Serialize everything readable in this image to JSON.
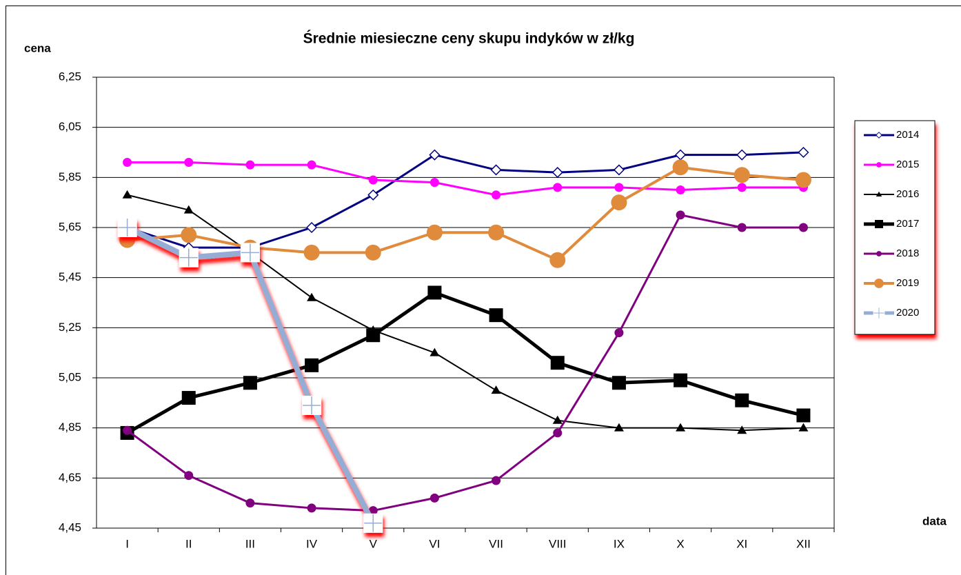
{
  "chart_data": {
    "type": "line",
    "title": "Średnie miesieczne ceny skupu indyków w zł/kg",
    "y_label": "cena",
    "x_label": "data",
    "categories": [
      "I",
      "II",
      "III",
      "IV",
      "V",
      "VI",
      "VII",
      "VIII",
      "IX",
      "X",
      "XI",
      "XII"
    ],
    "ylim": [
      4.45,
      6.25
    ],
    "yticks": [
      {
        "value": 4.45,
        "label": "4,45"
      },
      {
        "value": 4.65,
        "label": "4,65"
      },
      {
        "value": 4.85,
        "label": "4,85"
      },
      {
        "value": 5.05,
        "label": "5,05"
      },
      {
        "value": 5.25,
        "label": "5,25"
      },
      {
        "value": 5.45,
        "label": "5,45"
      },
      {
        "value": 5.65,
        "label": "5,65"
      },
      {
        "value": 5.85,
        "label": "5,85"
      },
      {
        "value": 6.05,
        "label": "6,05"
      },
      {
        "value": 6.25,
        "label": "6,25"
      }
    ],
    "grid": true,
    "legend": "right",
    "series": [
      {
        "name": "2014",
        "color": "#000080",
        "marker": "diamond-open",
        "values": [
          5.65,
          5.57,
          5.57,
          5.65,
          5.78,
          5.94,
          5.88,
          5.87,
          5.88,
          5.94,
          5.94,
          5.95
        ]
      },
      {
        "name": "2015",
        "color": "#ff00ff",
        "marker": "circle",
        "values": [
          5.91,
          5.91,
          5.9,
          5.9,
          5.84,
          5.83,
          5.78,
          5.81,
          5.81,
          5.8,
          5.81,
          5.81
        ]
      },
      {
        "name": "2016",
        "color": "#000000",
        "marker": "triangle",
        "values": [
          5.78,
          5.72,
          5.55,
          5.37,
          5.24,
          5.15,
          5.0,
          4.88,
          4.85,
          4.85,
          4.84,
          4.85
        ]
      },
      {
        "name": "2017",
        "color": "#000000",
        "marker": "square",
        "values": [
          4.83,
          4.97,
          5.03,
          5.1,
          5.22,
          5.39,
          5.3,
          5.11,
          5.03,
          5.04,
          4.96,
          4.9
        ]
      },
      {
        "name": "2018",
        "color": "#800080",
        "marker": "circle",
        "values": [
          4.84,
          4.66,
          4.55,
          4.53,
          4.52,
          4.57,
          4.64,
          4.83,
          5.23,
          5.7,
          5.65,
          5.65
        ]
      },
      {
        "name": "2019",
        "color": "#e08a3c",
        "marker": "circle-large",
        "values": [
          5.6,
          5.62,
          5.57,
          5.55,
          5.55,
          5.63,
          5.63,
          5.52,
          5.75,
          5.89,
          5.86,
          5.84
        ]
      },
      {
        "name": "2020",
        "color": "#95acd4",
        "marker": "plus-box",
        "values": [
          5.65,
          5.53,
          5.55,
          4.94,
          4.47,
          null,
          null,
          null,
          null,
          null,
          null,
          null
        ]
      }
    ]
  }
}
